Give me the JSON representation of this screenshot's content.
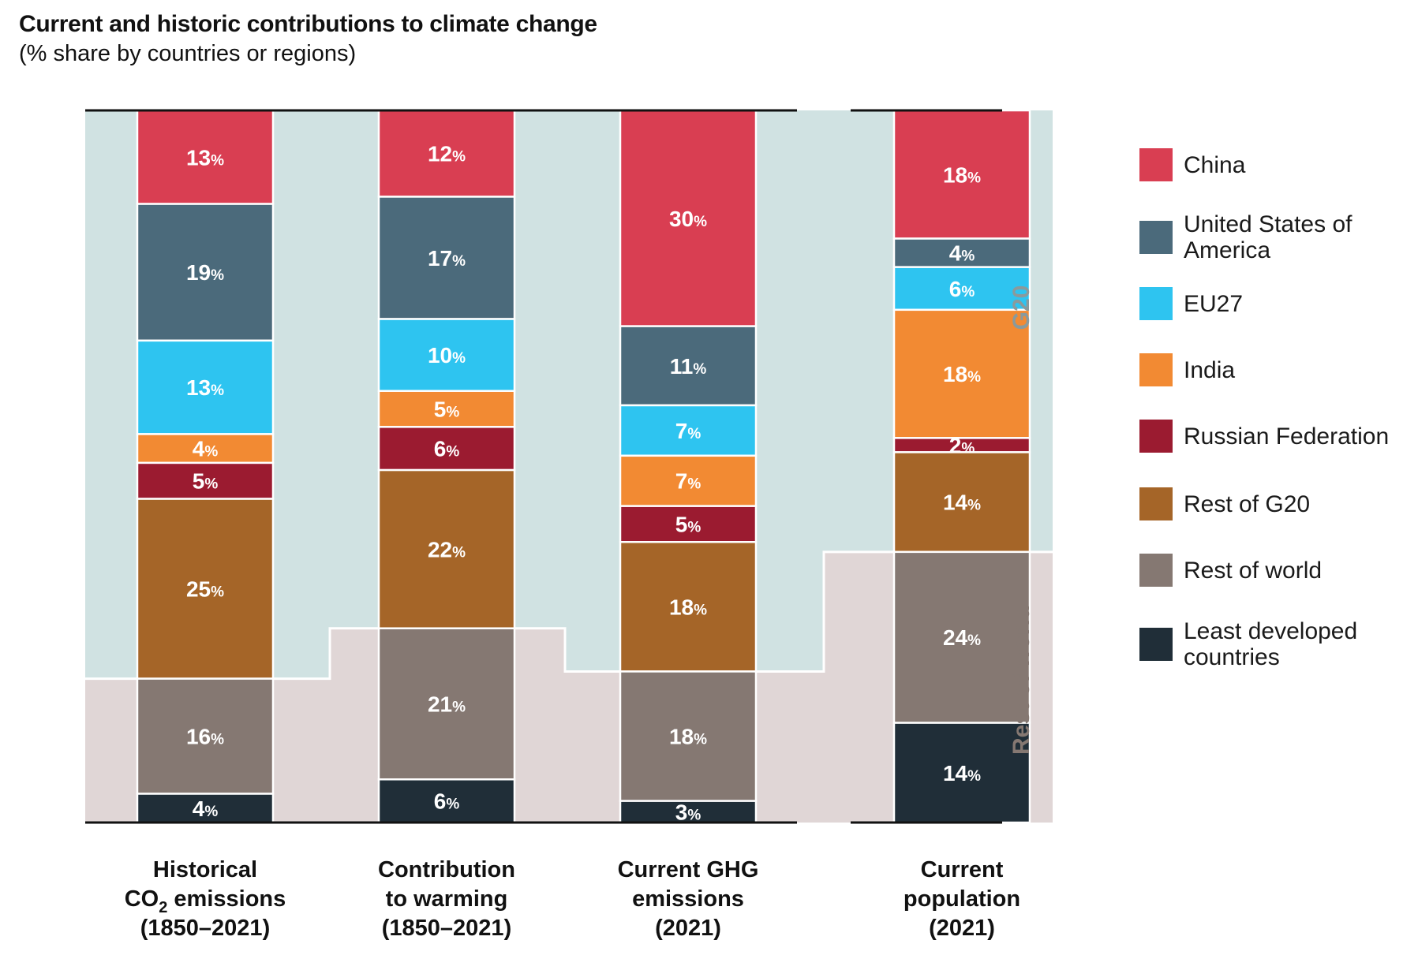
{
  "title": "Current and historic contributions to climate change",
  "subtitle": "(% share by countries or regions)",
  "colors": {
    "china": "#d93e52",
    "usa": "#4b6a7b",
    "eu27": "#2ec4f0",
    "india": "#f28a33",
    "russia": "#9b1b30",
    "rest_g20": "#a56528",
    "rest_world": "#857872",
    "ldc": "#202e38",
    "g20_band": "#d0e2e2",
    "row_band": "#e0d6d6"
  },
  "chart_data": {
    "type": "bar",
    "stacked": true,
    "value_unit": "%",
    "categories": [
      "Historical CO₂ emissions (1850–2021)",
      "Contribution to warming (1850–2021)",
      "Current GHG emissions (2021)",
      "Current population (2021)"
    ],
    "category_labels": [
      [
        "Historical",
        "CO",
        "2",
        " emissions",
        "(1850–2021)"
      ],
      [
        "Contribution",
        "to warming",
        "(1850–2021)"
      ],
      [
        "Current GHG",
        "emissions",
        "(2021)"
      ],
      [
        "Current",
        "population",
        "(2021)"
      ]
    ],
    "series": [
      {
        "name": "China",
        "key": "china",
        "values": [
          13,
          12,
          30,
          18
        ]
      },
      {
        "name": "United States of America",
        "key": "usa",
        "values": [
          19,
          17,
          11,
          4
        ]
      },
      {
        "name": "EU27",
        "key": "eu27",
        "values": [
          13,
          10,
          7,
          6
        ]
      },
      {
        "name": "India",
        "key": "india",
        "values": [
          4,
          5,
          7,
          18
        ]
      },
      {
        "name": "Russian Federation",
        "key": "russia",
        "values": [
          5,
          6,
          5,
          2
        ]
      },
      {
        "name": "Rest of G20",
        "key": "rest_g20",
        "values": [
          25,
          22,
          18,
          14
        ]
      },
      {
        "name": "Rest of world",
        "key": "rest_world",
        "values": [
          16,
          21,
          18,
          24
        ]
      },
      {
        "name": "Least developed countries",
        "key": "ldc",
        "values": [
          4,
          6,
          3,
          14
        ]
      }
    ],
    "groups": [
      {
        "name": "G20",
        "series": [
          "China",
          "United States of America",
          "EU27",
          "India",
          "Russian Federation",
          "Rest of G20"
        ]
      },
      {
        "name": "Rest of world",
        "series": [
          "Rest of world",
          "Least developed countries"
        ]
      }
    ],
    "ylim": [
      0,
      100
    ],
    "legend_position": "right"
  },
  "legend": [
    {
      "label": "China",
      "key": "china"
    },
    {
      "label": "United States of America",
      "key": "usa"
    },
    {
      "label": "EU27",
      "key": "eu27"
    },
    {
      "label": "India",
      "key": "india"
    },
    {
      "label": "Russian Federation",
      "key": "russia"
    },
    {
      "label": "Rest of G20",
      "key": "rest_g20"
    },
    {
      "label": "Rest of world",
      "key": "rest_world"
    },
    {
      "label": "Least developed countries",
      "key": "ldc"
    }
  ],
  "band_labels": {
    "g20": "G20",
    "rest_of_world": "Rest of world"
  }
}
